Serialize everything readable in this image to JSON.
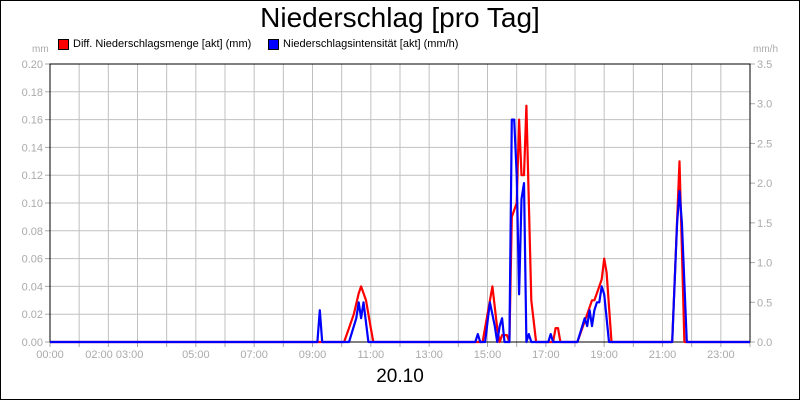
{
  "header": {
    "title": "Niederschlag [pro Tag]",
    "date_label": "20.10"
  },
  "legend": [
    {
      "label": "Diff. Niederschlagsmenge [akt] (mm)",
      "color": "#ff0000"
    },
    {
      "label": "Niederschlagsintensität [akt] (mm/h)",
      "color": "#0000ff"
    }
  ],
  "axes": {
    "left_unit": "mm",
    "right_unit": "mm/h",
    "left_ticks": [
      "0.00",
      "0.02",
      "0.04",
      "0.06",
      "0.08",
      "0.10",
      "0.12",
      "0.14",
      "0.16",
      "0.18",
      "0.20"
    ],
    "right_ticks": [
      "0.0",
      "0.5",
      "1.0",
      "1.5",
      "2.0",
      "2.5",
      "3.0",
      "3.5"
    ],
    "x_ticks": [
      "00:00",
      "02:00 03:00",
      "05:00",
      "07:00",
      "09:00",
      "11:00",
      "13:00",
      "15:00",
      "17:00",
      "19:00",
      "21:00",
      "23:00"
    ]
  },
  "chart_data": {
    "type": "line",
    "title": "Niederschlag [pro Tag]",
    "xlabel": "20.10",
    "ylabel": "mm",
    "ylabel_right": "mm/h",
    "ylim": [
      0,
      0.2
    ],
    "ylim_right": [
      0,
      3.5
    ],
    "xlim": [
      "00:00",
      "24:00"
    ],
    "grid": true,
    "legend_position": "top",
    "series": [
      {
        "name": "Diff. Niederschlagsmenge [akt] (mm)",
        "axis": "left",
        "color": "#ff0000",
        "points": [
          [
            "00:00",
            0
          ],
          [
            "10:05",
            0
          ],
          [
            "10:15",
            0.01
          ],
          [
            "10:25",
            0.02
          ],
          [
            "10:35",
            0.035
          ],
          [
            "10:40",
            0.04
          ],
          [
            "10:50",
            0.03
          ],
          [
            "11:00",
            0.01
          ],
          [
            "11:05",
            0
          ],
          [
            "14:50",
            0
          ],
          [
            "15:00",
            0.02
          ],
          [
            "15:10",
            0.04
          ],
          [
            "15:20",
            0.01
          ],
          [
            "15:25",
            0
          ],
          [
            "15:30",
            0.005
          ],
          [
            "15:40",
            0.005
          ],
          [
            "15:45",
            0
          ],
          [
            "15:50",
            0.09
          ],
          [
            "16:00",
            0.1
          ],
          [
            "16:05",
            0.16
          ],
          [
            "16:10",
            0.12
          ],
          [
            "16:15",
            0.12
          ],
          [
            "16:20",
            0.17
          ],
          [
            "16:30",
            0.03
          ],
          [
            "16:40",
            0
          ],
          [
            "17:15",
            0
          ],
          [
            "17:20",
            0.01
          ],
          [
            "17:25",
            0.01
          ],
          [
            "17:30",
            0
          ],
          [
            "18:05",
            0
          ],
          [
            "18:15",
            0.01
          ],
          [
            "18:25",
            0.02
          ],
          [
            "18:35",
            0.03
          ],
          [
            "18:40",
            0.03
          ],
          [
            "18:50",
            0.04
          ],
          [
            "18:55",
            0.045
          ],
          [
            "19:00",
            0.06
          ],
          [
            "19:05",
            0.05
          ],
          [
            "19:15",
            0
          ],
          [
            "21:20",
            0
          ],
          [
            "21:35",
            0.13
          ],
          [
            "21:45",
            0
          ],
          [
            "24:00",
            0
          ]
        ]
      },
      {
        "name": "Niederschlagsintensität [akt] (mm/h)",
        "axis": "right",
        "color": "#0000ff",
        "points": [
          [
            "00:00",
            0
          ],
          [
            "09:10",
            0
          ],
          [
            "09:15",
            0.4
          ],
          [
            "09:20",
            0
          ],
          [
            "10:15",
            0
          ],
          [
            "10:30",
            0.3
          ],
          [
            "10:35",
            0.5
          ],
          [
            "10:40",
            0.3
          ],
          [
            "10:45",
            0.5
          ],
          [
            "10:55",
            0
          ],
          [
            "14:35",
            0
          ],
          [
            "14:40",
            0.1
          ],
          [
            "14:45",
            0
          ],
          [
            "14:55",
            0
          ],
          [
            "15:05",
            0.5
          ],
          [
            "15:15",
            0.2
          ],
          [
            "15:20",
            0
          ],
          [
            "15:25",
            0.2
          ],
          [
            "15:30",
            0.3
          ],
          [
            "15:35",
            0
          ],
          [
            "15:45",
            0
          ],
          [
            "15:50",
            2.8
          ],
          [
            "15:55",
            2.8
          ],
          [
            "16:00",
            2.1
          ],
          [
            "16:05",
            0.6
          ],
          [
            "16:10",
            1.8
          ],
          [
            "16:15",
            2.0
          ],
          [
            "16:20",
            0
          ],
          [
            "16:25",
            0.1
          ],
          [
            "16:30",
            0
          ],
          [
            "17:05",
            0
          ],
          [
            "17:10",
            0.1
          ],
          [
            "17:15",
            0
          ],
          [
            "18:05",
            0
          ],
          [
            "18:15",
            0.2
          ],
          [
            "18:20",
            0.3
          ],
          [
            "18:25",
            0.2
          ],
          [
            "18:30",
            0.4
          ],
          [
            "18:35",
            0.2
          ],
          [
            "18:40",
            0.4
          ],
          [
            "18:45",
            0.5
          ],
          [
            "18:50",
            0.5
          ],
          [
            "18:55",
            0.7
          ],
          [
            "19:00",
            0.6
          ],
          [
            "19:10",
            0
          ],
          [
            "21:20",
            0
          ],
          [
            "21:30",
            1.5
          ],
          [
            "21:35",
            1.9
          ],
          [
            "21:40",
            1.5
          ],
          [
            "21:50",
            0
          ],
          [
            "24:00",
            0
          ]
        ]
      }
    ]
  }
}
